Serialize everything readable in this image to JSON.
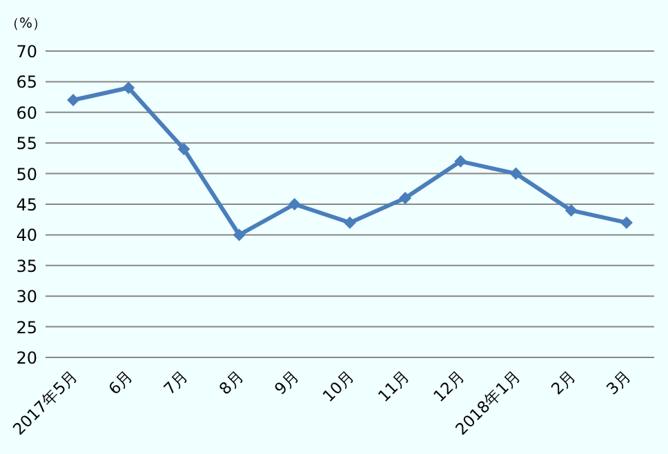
{
  "chart_data": {
    "type": "line",
    "ylabel": "（%）",
    "categories": [
      "2017年5月",
      "6月",
      "7月",
      "8月",
      "9月",
      "10月",
      "11月",
      "12月",
      "2018年1月",
      "2月",
      "3月"
    ],
    "series": [
      {
        "color": "#4a7ebb",
        "values": [
          62,
          64,
          54,
          40,
          45,
          42,
          46,
          52,
          50,
          44,
          42
        ]
      }
    ],
    "ylim": [
      20,
      70
    ],
    "yticks": [
      20,
      25,
      30,
      35,
      40,
      45,
      50,
      55,
      60,
      65,
      70
    ],
    "grid": "y",
    "marker": "diamond",
    "line_style": "solid"
  }
}
